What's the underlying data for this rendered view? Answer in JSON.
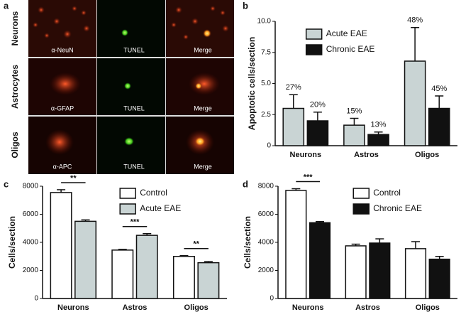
{
  "panel_a": {
    "label": "a",
    "rows": [
      {
        "name": "Neurons",
        "cells": [
          "α-NeuN",
          "TUNEL",
          "Merge"
        ]
      },
      {
        "name": "Astrocytes",
        "cells": [
          "α-GFAP",
          "TUNEL",
          "Merge"
        ]
      },
      {
        "name": "Oligos",
        "cells": [
          "α-APC",
          "TUNEL",
          "Merge"
        ]
      }
    ]
  },
  "chart_data": [
    {
      "type": "bar",
      "label": "b",
      "ylabel": "Apoptotic cells/section",
      "categories": [
        "Neurons",
        "Astros",
        "Oligos"
      ],
      "series": [
        {
          "name": "Acute EAE",
          "color": "#c9d4d4",
          "values": [
            3.0,
            1.65,
            6.8
          ],
          "errors": [
            1.1,
            0.55,
            2.7
          ],
          "labels": [
            "27%",
            "15%",
            "48%"
          ]
        },
        {
          "name": "Chronic EAE",
          "color": "#111111",
          "values": [
            2.0,
            0.9,
            3.0
          ],
          "errors": [
            0.7,
            0.2,
            1.0
          ],
          "labels": [
            "20%",
            "13%",
            "45%"
          ]
        }
      ],
      "ylim": [
        0,
        10
      ],
      "yticks": [
        0,
        2.5,
        {
          "value": 5,
          "label": "5.0"
        },
        7.5,
        {
          "value": 10,
          "label": "10.0"
        }
      ],
      "legend": "upper left"
    },
    {
      "type": "bar",
      "label": "c",
      "ylabel": "Cells/section",
      "categories": [
        "Neurons",
        "Astros",
        "Oligos"
      ],
      "series": [
        {
          "name": "Control",
          "color": "#ffffff",
          "values": [
            7550,
            3450,
            3000
          ],
          "errors": [
            200,
            50,
            50
          ]
        },
        {
          "name": "Acute EAE",
          "color": "#c9d4d4",
          "values": [
            5500,
            4500,
            2550
          ],
          "errors": [
            100,
            120,
            80
          ]
        }
      ],
      "significance": [
        "**",
        "***",
        "**"
      ],
      "ylim": [
        0,
        8000
      ],
      "yticks": [
        0,
        2000,
        4000,
        6000,
        8000
      ],
      "legend": "upper center"
    },
    {
      "type": "bar",
      "label": "d",
      "ylabel": "Cells/section",
      "categories": [
        "Neurons",
        "Astros",
        "Oligos"
      ],
      "series": [
        {
          "name": "Control",
          "color": "#ffffff",
          "values": [
            7700,
            3750,
            3550
          ],
          "errors": [
            120,
            120,
            500
          ]
        },
        {
          "name": "Chronic EAE",
          "color": "#111111",
          "values": [
            5400,
            3950,
            2800
          ],
          "errors": [
            80,
            300,
            200
          ]
        }
      ],
      "significance": [
        "***",
        null,
        null
      ],
      "ylim": [
        0,
        8000
      ],
      "yticks": [
        0,
        2000,
        4000,
        6000,
        8000
      ],
      "legend": "upper center"
    }
  ]
}
